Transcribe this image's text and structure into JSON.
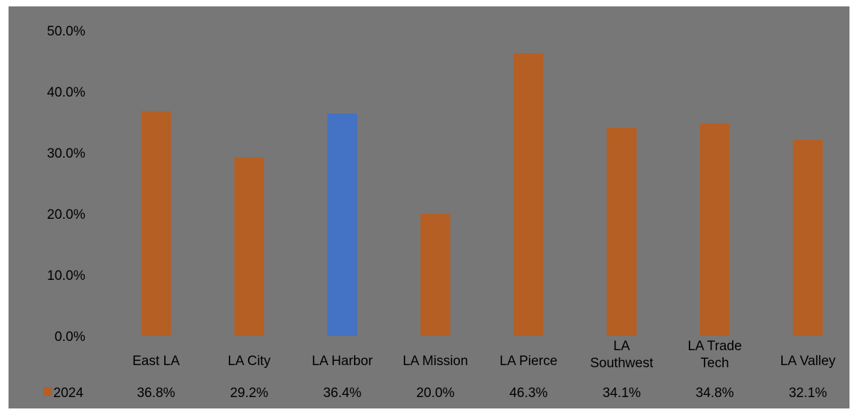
{
  "chart_data": {
    "type": "bar",
    "categories": [
      [
        "East LA"
      ],
      [
        "LA City"
      ],
      [
        "LA Harbor"
      ],
      [
        "LA Mission"
      ],
      [
        "LA Pierce"
      ],
      [
        "LA",
        "Southwest"
      ],
      [
        "LA Trade",
        "Tech"
      ],
      [
        "LA Valley"
      ]
    ],
    "series": [
      {
        "name": "2024",
        "values": [
          36.8,
          29.2,
          36.4,
          20.0,
          46.3,
          34.1,
          34.8,
          32.1
        ],
        "value_labels": [
          "36.8%",
          "29.2%",
          "36.4%",
          "20.0%",
          "46.3%",
          "34.1%",
          "34.8%",
          "32.1%"
        ],
        "color": "#b55f24",
        "highlight_index": 2,
        "highlight_color": "#4472c4"
      }
    ],
    "yticks": [
      "0.0%",
      "10.0%",
      "20.0%",
      "30.0%",
      "40.0%",
      "50.0%"
    ],
    "ylim": [
      0,
      50
    ],
    "grid": false,
    "legend": "data-table-bottom-left"
  },
  "colors": {
    "plot_background": "#777777",
    "page_background": "#ffffff"
  }
}
